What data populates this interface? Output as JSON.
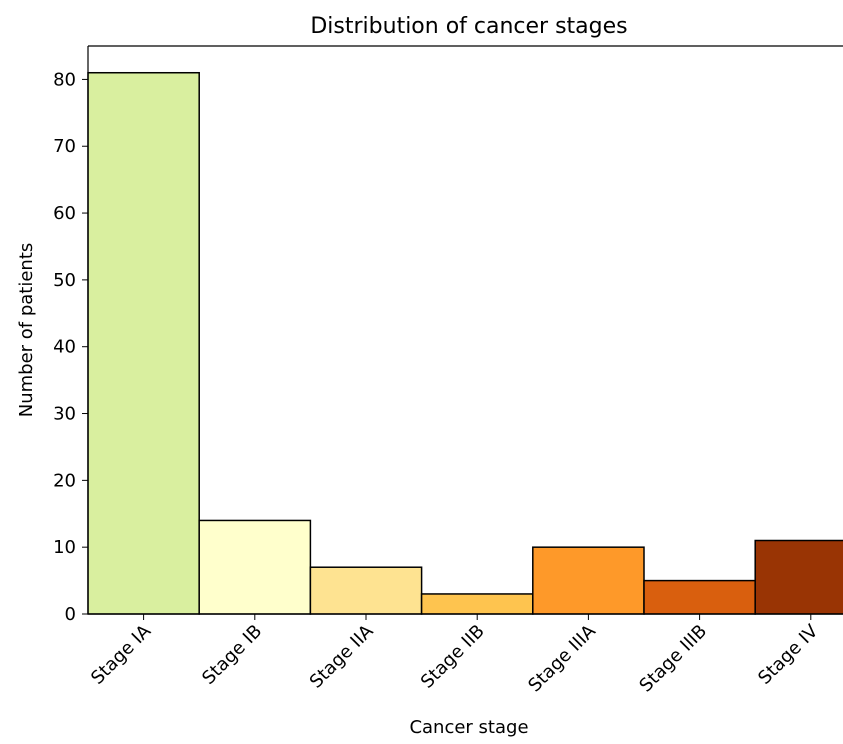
{
  "chart_data": {
    "type": "bar",
    "title": "Distribution of cancer stages",
    "xlabel": "Cancer stage",
    "ylabel": "Number of patients",
    "categories": [
      "Stage IA",
      "Stage IB",
      "Stage IIA",
      "Stage IIB",
      "Stage IIIA",
      "Stage IIIB",
      "Stage IV"
    ],
    "values": [
      81,
      14,
      7,
      3,
      10,
      5,
      11
    ],
    "colors": [
      "#d9ef9f",
      "#ffffcc",
      "#fee391",
      "#fec44f",
      "#fe9929",
      "#d95f0e",
      "#993404"
    ],
    "edge_color": "#000000",
    "ylim": [
      0,
      85
    ],
    "yticks": [
      0,
      10,
      20,
      30,
      40,
      50,
      60,
      70,
      80
    ],
    "grid": false,
    "legend": "none"
  }
}
